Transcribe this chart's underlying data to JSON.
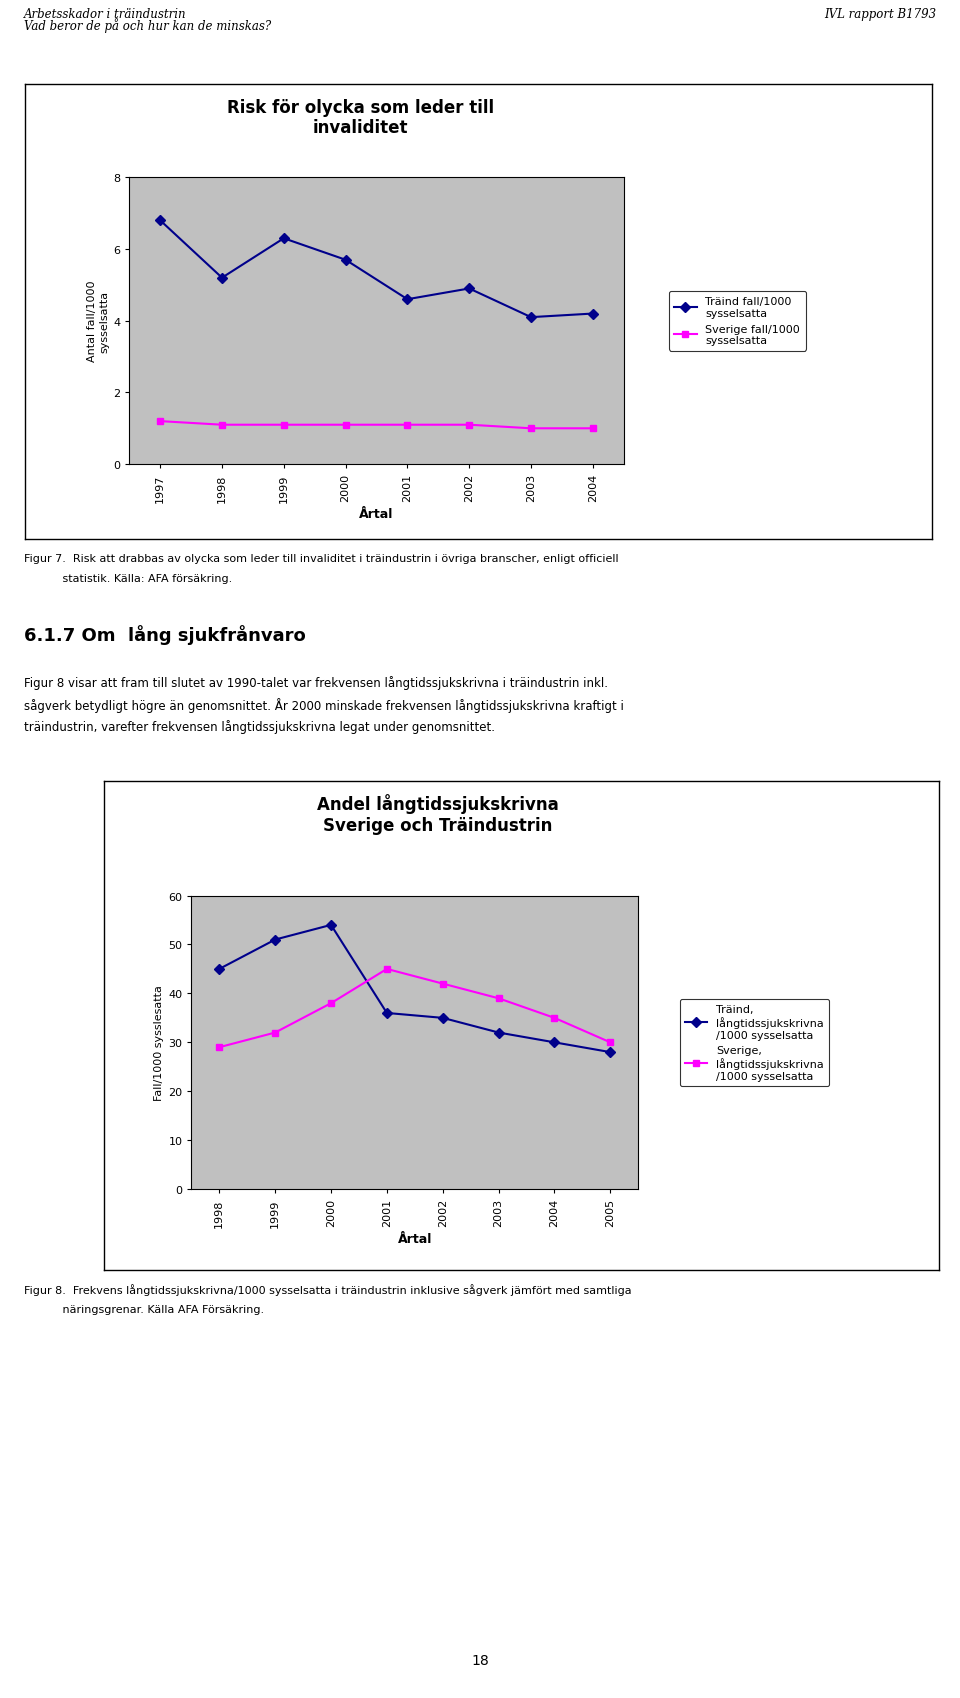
{
  "page_header_left_1": "Arbetsskador i träindustrin",
  "page_header_left_2": "Vad beror de på och hur kan de minskas?",
  "page_header_right": "IVL rapport B1793",
  "page_number": "18",
  "chart1": {
    "title": "Risk för olycka som leder till\ninvaliditet",
    "xlabel": "Årtal",
    "ylabel": "Antal fall/1000\nsysselsatta",
    "years": [
      1997,
      1998,
      1999,
      2000,
      2001,
      2002,
      2003,
      2004
    ],
    "traind_values": [
      6.8,
      5.2,
      6.3,
      5.7,
      4.6,
      4.9,
      4.1,
      4.2
    ],
    "sverige_values": [
      1.2,
      1.1,
      1.1,
      1.1,
      1.1,
      1.1,
      1.0,
      1.0
    ],
    "traind_color": "#00008B",
    "sverige_color": "#FF00FF",
    "ylim": [
      0,
      8
    ],
    "yticks": [
      0,
      2,
      4,
      6,
      8
    ],
    "legend_traind": "Träind fall/1000\nsysselsatta",
    "legend_sverige": "Sverige fall/1000\nsysselsatta",
    "bg_color": "#C0C0C0"
  },
  "figur7_caption_1": "Figur 7.  Risk att drabbas av olycka som leder till invaliditet i träindustrin i övriga branscher, enligt officiell",
  "figur7_caption_2": "           statistik. Källa: AFA försäkring.",
  "section_heading": "6.1.7 Om  lång sjukfrånvaro",
  "section_text_1": "Figur 8 visar att fram till slutet av 1990-talet var frekvensen långtidssjukskrivna i träindustrin inkl.",
  "section_text_2": "sågverk betydligt högre än genomsnittet. År 2000 minskade frekvensen långtidssjukskrivna kraftigt i",
  "section_text_3": "träindustrin, varefter frekvensen långtidssjukskrivna legat under genomsnittet.",
  "chart2": {
    "title": "Andel långtidssjukskrivna\nSverige och Träindustrin",
    "xlabel": "Årtal",
    "ylabel": "Fall/1000 sysslesatta",
    "years": [
      1998,
      1999,
      2000,
      2001,
      2002,
      2003,
      2004,
      2005
    ],
    "traind_values": [
      45,
      51,
      54,
      36,
      35,
      32,
      30,
      28
    ],
    "sverige_values": [
      29,
      32,
      38,
      45,
      42,
      39,
      35,
      30
    ],
    "traind_color": "#00008B",
    "sverige_color": "#FF00FF",
    "ylim": [
      0,
      60
    ],
    "yticks": [
      0,
      10,
      20,
      30,
      40,
      50,
      60
    ],
    "legend_traind": "Träind,\nlångtidssjukskrivna\n/1000 sysselsatta",
    "legend_sverige": "Sverige,\nlångtidssjukskrivna\n/1000 sysselsatta",
    "bg_color": "#C0C0C0"
  },
  "figur8_caption_1": "Figur 8.  Frekvens långtidssjukskrivna/1000 sysselsatta i träindustrin inklusive sågverk jämfört med samtliga",
  "figur8_caption_2": "           näringsgrenar. Källa AFA Försäkring."
}
